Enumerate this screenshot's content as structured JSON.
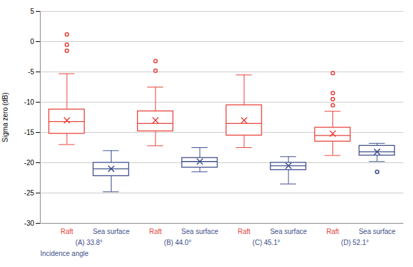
{
  "chart_data": {
    "type": "box",
    "ylabel": "Sigma zero (dB)",
    "categories": [
      "Raft",
      "Sea surface",
      "Raft",
      "Sea surface",
      "Raft",
      "Sea surface",
      "Raft",
      "Sea surface"
    ],
    "colors": [
      "#e8413a",
      "#3d4e8a",
      "#e8413a",
      "#3d4e8a",
      "#e8413a",
      "#3d4e8a",
      "#e8413a",
      "#3d4e8a"
    ],
    "groups": [
      "(A) 33.8°",
      "(B) 44.0°",
      "(C) 45.1°",
      "(D) 52.1°"
    ],
    "group_title": "Incidence angle",
    "group_label_color": "#3d4e8a",
    "boxes": [
      {
        "q1": -15.2,
        "median": -13.2,
        "q3": -11.2,
        "mean": -13.0,
        "whisker_low": -17.0,
        "whisker_high": -5.3,
        "fliers": [
          1.2,
          -0.5,
          -1.5
        ]
      },
      {
        "q1": -22.2,
        "median": -21.0,
        "q3": -20.0,
        "mean": -21.0,
        "whisker_low": -24.8,
        "whisker_high": -18.0,
        "fliers": []
      },
      {
        "q1": -14.8,
        "median": -13.5,
        "q3": -11.5,
        "mean": -13.0,
        "whisker_low": -17.2,
        "whisker_high": -7.5,
        "fliers": [
          -3.2,
          -4.8
        ]
      },
      {
        "q1": -20.8,
        "median": -19.8,
        "q3": -19.2,
        "mean": -19.8,
        "whisker_low": -21.5,
        "whisker_high": -17.5,
        "fliers": []
      },
      {
        "q1": -15.5,
        "median": -13.5,
        "q3": -10.5,
        "mean": -13.0,
        "whisker_low": -17.5,
        "whisker_high": -5.5,
        "fliers": []
      },
      {
        "q1": -21.2,
        "median": -20.5,
        "q3": -20.0,
        "mean": -20.5,
        "whisker_low": -23.5,
        "whisker_high": -19.0,
        "fliers": []
      },
      {
        "q1": -16.5,
        "median": -15.5,
        "q3": -14.2,
        "mean": -15.2,
        "whisker_low": -18.8,
        "whisker_high": -11.5,
        "fliers": [
          -5.2,
          -8.5,
          -9.5,
          -10.5
        ]
      },
      {
        "q1": -18.8,
        "median": -18.2,
        "q3": -17.2,
        "mean": -18.2,
        "whisker_low": -19.8,
        "whisker_high": -16.8,
        "fliers": [
          -21.5
        ]
      }
    ],
    "ylim": [
      -30,
      5
    ],
    "yticks": [
      5,
      0,
      -5,
      -10,
      -15,
      -20,
      -25,
      -30
    ],
    "grid": true
  }
}
